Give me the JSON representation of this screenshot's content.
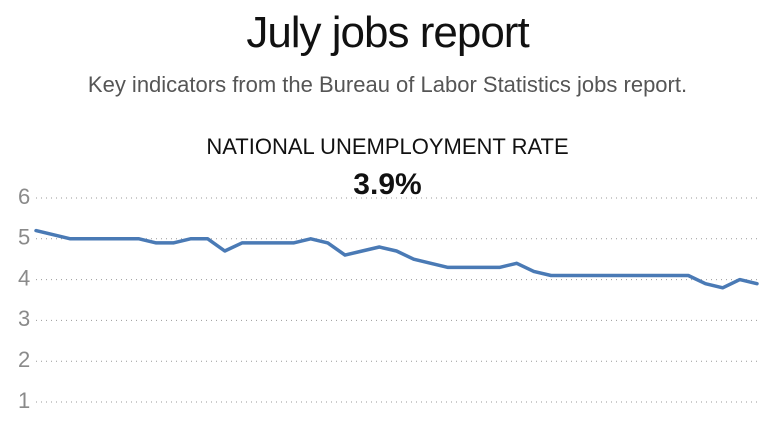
{
  "header": {
    "title": "July jobs report",
    "subtitle": "Key indicators from the Bureau of Labor Statistics jobs report."
  },
  "chart_data": {
    "type": "line",
    "title": "NATIONAL UNEMPLOYMENT RATE",
    "headline_value": "3.9%",
    "xlabel": "",
    "ylabel": "",
    "ylim": [
      1,
      6
    ],
    "yticks": [
      1,
      2,
      3,
      4,
      5,
      6
    ],
    "grid": true,
    "line_color": "#4a7ab5",
    "series": [
      {
        "values": [
          5.2,
          5.1,
          5.0,
          5.0,
          5.0,
          5.0,
          5.0,
          4.9,
          4.9,
          5.0,
          5.0,
          4.7,
          4.9,
          4.9,
          4.9,
          4.9,
          5.0,
          4.9,
          4.6,
          4.7,
          4.8,
          4.7,
          4.5,
          4.4,
          4.3,
          4.3,
          4.3,
          4.3,
          4.4,
          4.2,
          4.1,
          4.1,
          4.1,
          4.1,
          4.1,
          4.1,
          4.1,
          4.1,
          4.1,
          3.9,
          3.8,
          4.0,
          3.9
        ]
      }
    ]
  }
}
